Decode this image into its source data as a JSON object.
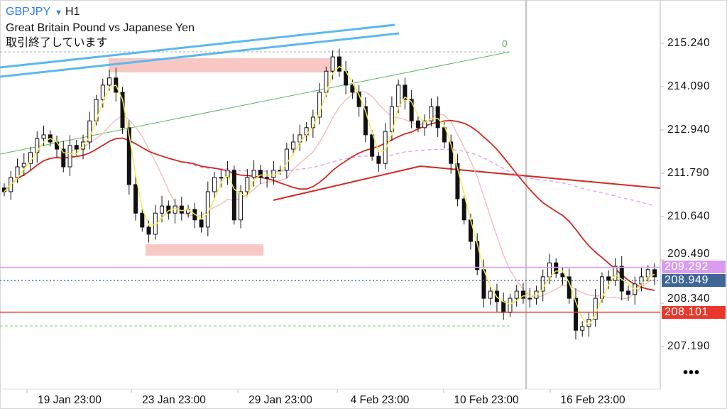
{
  "header": {
    "symbol": "GBPJPY",
    "dropdown_icon": "triangle-down-icon",
    "timeframe": "H1",
    "description": "Great Britain Pound vs Japanese Yen",
    "status": "取引終了しています"
  },
  "fibo_label": "0",
  "more_button": "•••",
  "chart_data": {
    "type": "candlestick",
    "title": "GBPJPY H1",
    "y_ticks": [
      "215.240",
      "214.090",
      "212.940",
      "211.790",
      "210.640",
      "209.490",
      "208.340",
      "207.190"
    ],
    "ylim": [
      206.4,
      216.4
    ],
    "x_ticks": [
      "19 Jan 23:00",
      "23 Jan 23:00",
      "29 Jan 23:00",
      "4 Feb 23:00",
      "10 Feb 23:00",
      "16 Feb 23:00"
    ],
    "closes": [
      211.3,
      211.68,
      211.96,
      212.05,
      212.34,
      212.71,
      212.81,
      212.62,
      212.43,
      211.96,
      212.53,
      212.43,
      212.62,
      213.18,
      213.75,
      214.13,
      214.32,
      213.94,
      213.0,
      211.49,
      210.73,
      210.36,
      210.17,
      210.73,
      210.92,
      210.73,
      210.92,
      210.73,
      210.83,
      210.55,
      210.36,
      211.3,
      211.68,
      211.68,
      211.87,
      210.55,
      211.3,
      211.68,
      211.87,
      211.68,
      211.68,
      211.87,
      211.87,
      212.43,
      212.62,
      212.81,
      213.0,
      213.28,
      213.94,
      214.5,
      214.88,
      214.5,
      214.13,
      213.94,
      213.56,
      212.81,
      212.24,
      212.05,
      212.9,
      213.56,
      214.13,
      213.75,
      213.18,
      213.0,
      213.18,
      213.56,
      213.0,
      212.62,
      212.05,
      211.11,
      210.55,
      209.98,
      209.23,
      208.47,
      208.66,
      208.38,
      208.09,
      208.47,
      208.66,
      208.47,
      208.47,
      208.66,
      209.04,
      209.41,
      209.13,
      209.04,
      208.47,
      207.62,
      207.72,
      207.91,
      208.47,
      209.04,
      208.94,
      209.32,
      208.66,
      208.57,
      208.85,
      209.04,
      209.23,
      209.04
    ],
    "price_tags": [
      {
        "label": "209.292",
        "value": 209.292,
        "color": "#d99cf0"
      },
      {
        "label": "208.949",
        "value": 208.949,
        "color": "#3f6696"
      },
      {
        "label": "208.101",
        "value": 208.101,
        "color": "#e8382b"
      }
    ],
    "colors": {
      "candle": "#111111",
      "ma_fast": "#f2ec5a",
      "ma_mid": "#f3b9b5",
      "ma_slow": "#d3291f",
      "ma_long": "#e199f0",
      "trendline_blue": "#5bb8f0",
      "trendline_green": "#5fb35f",
      "zone": "#f4b6b0",
      "separator": "#c8c8c8"
    }
  }
}
